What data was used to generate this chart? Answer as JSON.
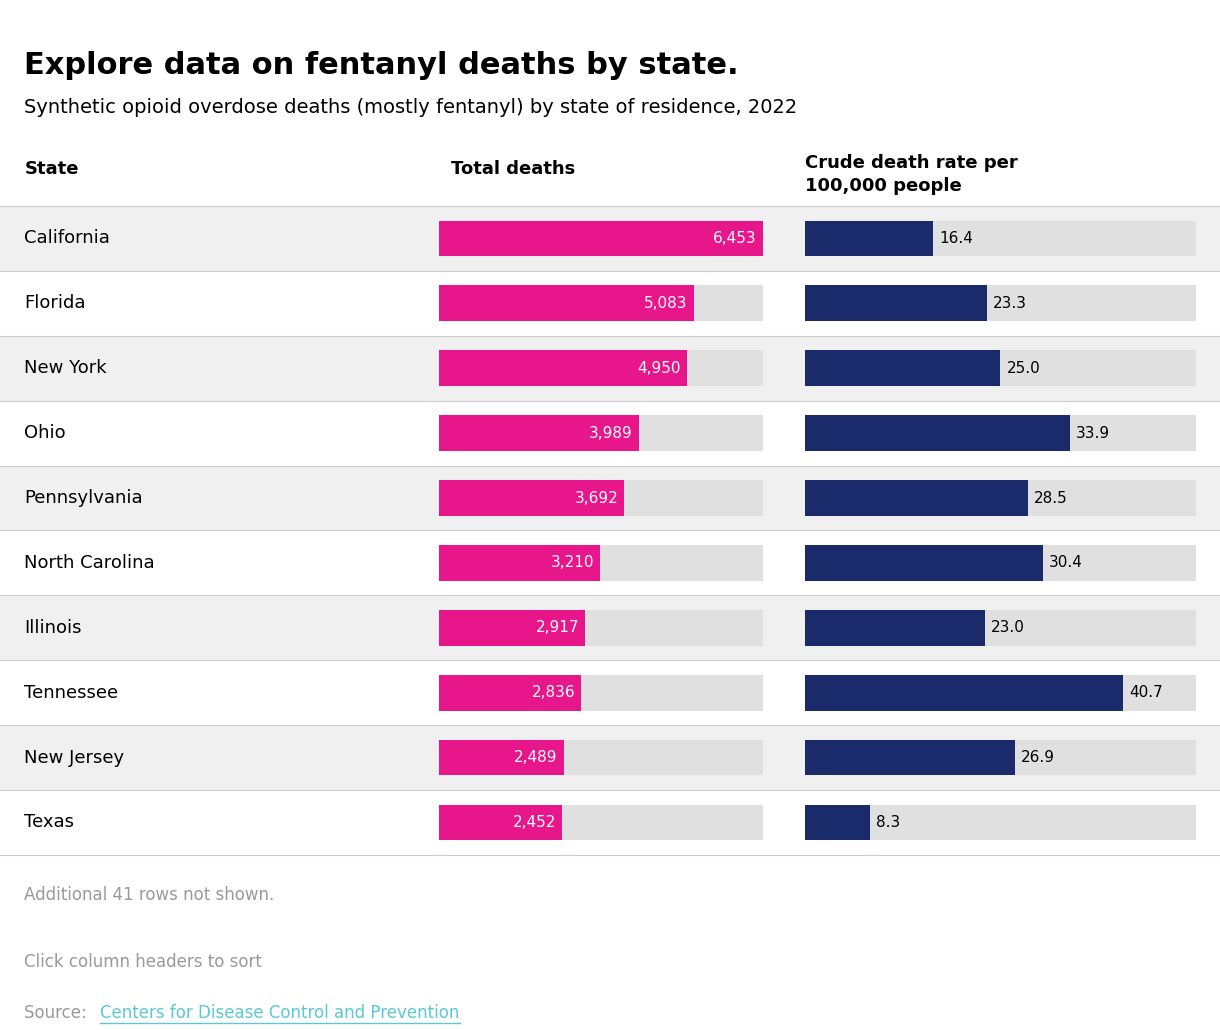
{
  "title": "Explore data on fentanyl deaths by state.",
  "subtitle": "Synthetic opioid overdose deaths (mostly fentanyl) by state of residence, 2022",
  "col1_header": "State",
  "col2_header": "Total deaths",
  "col3_header": "Crude death rate per\n100,000 people",
  "states": [
    "California",
    "Florida",
    "New York",
    "Ohio",
    "Pennsylvania",
    "North Carolina",
    "Illinois",
    "Tennessee",
    "New Jersey",
    "Texas"
  ],
  "total_deaths": [
    6453,
    5083,
    4950,
    3989,
    3692,
    3210,
    2917,
    2836,
    2489,
    2452
  ],
  "death_labels": [
    "6,453",
    "5,083",
    "4,950",
    "3,989",
    "3,692",
    "3,210",
    "2,917",
    "2,836",
    "2,489",
    "2,452"
  ],
  "crude_rates": [
    16.4,
    23.3,
    25.0,
    33.9,
    28.5,
    30.4,
    23.0,
    40.7,
    26.9,
    8.3
  ],
  "crude_labels": [
    "16.4",
    "23.3",
    "25.0",
    "33.9",
    "28.5",
    "30.4",
    "23.0",
    "40.7",
    "26.9",
    "8.3"
  ],
  "pink_color": "#E8168B",
  "navy_color": "#1B2A6B",
  "bg_row_even": "#F0F0F0",
  "bg_row_odd": "#FFFFFF",
  "bg_bar_track": "#E0E0E0",
  "footer_note": "Additional 41 rows not shown.",
  "footer_click": "Click column headers to sort",
  "footer_source": "Source: ",
  "footer_source_link": "Centers for Disease Control and Prevention",
  "max_deaths": 6453,
  "max_rate": 50.0,
  "title_fontsize": 22,
  "subtitle_fontsize": 14,
  "header_fontsize": 13,
  "row_fontsize": 13
}
